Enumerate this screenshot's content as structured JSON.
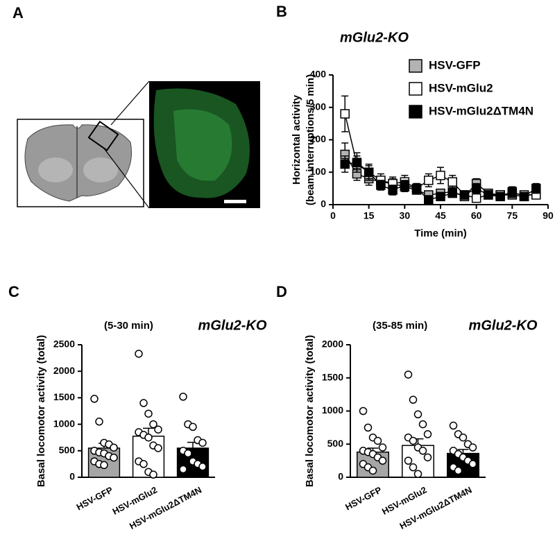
{
  "figure_labels": [
    "A",
    "B",
    "C",
    "D"
  ],
  "chart_data": [
    {
      "type": "line",
      "title": "mGlu2-KO",
      "ylabel": [
        "Horizontal activity",
        "(beam interruptions/5 min)"
      ],
      "xlabel": "Time (min)",
      "x": [
        5,
        10,
        15,
        20,
        25,
        30,
        35,
        40,
        45,
        50,
        55,
        60,
        65,
        70,
        75,
        80,
        85
      ],
      "series": [
        {
          "name": "HSV-GFP",
          "color": "#b3b3b3",
          "values": [
            155,
            95,
            80,
            70,
            65,
            55,
            45,
            30,
            35,
            40,
            25,
            65,
            35,
            30,
            30,
            25,
            35
          ],
          "errors": [
            35,
            20,
            20,
            15,
            15,
            15,
            10,
            10,
            10,
            10,
            10,
            15,
            10,
            10,
            10,
            10,
            10
          ]
        },
        {
          "name": "HSV-mGlu2",
          "color": "#ffffff",
          "values": [
            280,
            125,
            100,
            75,
            65,
            70,
            50,
            75,
            90,
            70,
            30,
            20,
            30,
            30,
            35,
            30,
            30
          ],
          "errors": [
            55,
            25,
            20,
            20,
            20,
            20,
            15,
            20,
            25,
            20,
            10,
            10,
            10,
            10,
            10,
            10,
            10
          ]
        },
        {
          "name": "HSV-mGlu2ΔTM4N",
          "color": "#000000",
          "values": [
            125,
            130,
            100,
            60,
            45,
            60,
            50,
            15,
            25,
            35,
            30,
            50,
            30,
            25,
            40,
            25,
            50
          ],
          "errors": [
            25,
            30,
            25,
            15,
            15,
            15,
            15,
            10,
            10,
            10,
            10,
            15,
            10,
            10,
            15,
            10,
            15
          ]
        }
      ],
      "xlim": [
        0,
        90
      ],
      "xticks": [
        0,
        15,
        30,
        45,
        60,
        75,
        90
      ],
      "ylim": [
        0,
        400
      ],
      "yticks": [
        0,
        100,
        200,
        300,
        400
      ]
    },
    {
      "type": "bar",
      "subtitle": "(5-30 min)",
      "annotation": "mGlu2-KO",
      "ylabel": "Basal locomotor activity (total)",
      "categories": [
        "HSV-GFP",
        "HSV-mGlu2",
        "HSV-mGlu2ΔTM4N"
      ],
      "values": [
        550,
        775,
        550
      ],
      "errors": [
        90,
        150,
        110
      ],
      "colors": [
        "#a6a6a6",
        "#ffffff",
        "#000000"
      ],
      "points": [
        [
          1480,
          1050,
          650,
          620,
          560,
          500,
          470,
          450,
          400,
          370,
          300,
          250,
          230
        ],
        [
          2330,
          1400,
          1200,
          1000,
          900,
          850,
          800,
          750,
          600,
          550,
          300,
          250,
          100,
          50
        ],
        [
          1520,
          1000,
          950,
          700,
          650,
          500,
          450,
          300,
          250,
          200,
          150
        ]
      ],
      "ylim": [
        0,
        2500
      ],
      "yticks": [
        0,
        500,
        1000,
        1500,
        2000,
        2500
      ]
    },
    {
      "type": "bar",
      "subtitle": "(35-85 min)",
      "annotation": "mGlu2-KO",
      "ylabel": "Basal locomotor activity (total)",
      "categories": [
        "HSV-GFP",
        "HSV-mGlu2",
        "HSV-mGlu2ΔTM4N"
      ],
      "values": [
        380,
        480,
        360
      ],
      "errors": [
        60,
        100,
        60
      ],
      "colors": [
        "#a6a6a6",
        "#ffffff",
        "#000000"
      ],
      "points": [
        [
          1000,
          750,
          600,
          550,
          450,
          400,
          380,
          350,
          300,
          250,
          200,
          150,
          100
        ],
        [
          1550,
          1170,
          950,
          800,
          650,
          600,
          550,
          450,
          400,
          300,
          250,
          150,
          50
        ],
        [
          780,
          650,
          600,
          500,
          450,
          400,
          350,
          300,
          250,
          200,
          150,
          100
        ]
      ],
      "ylim": [
        0,
        2000
      ],
      "yticks": [
        0,
        500,
        1000,
        1500,
        2000
      ]
    }
  ]
}
